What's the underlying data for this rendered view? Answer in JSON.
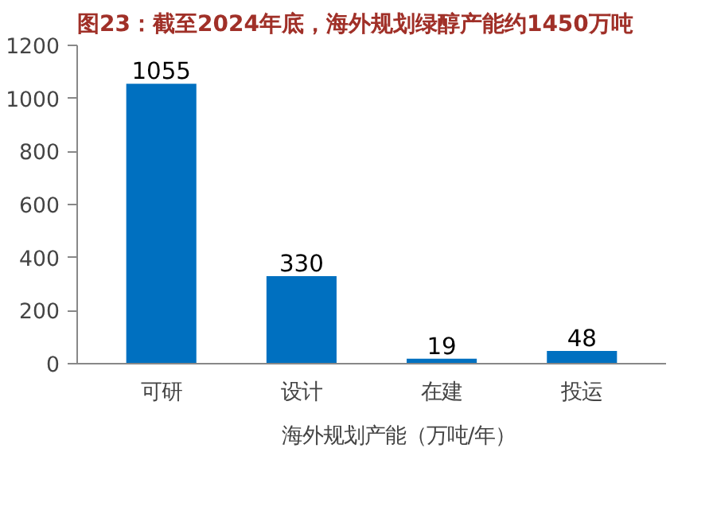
{
  "chart_data": {
    "type": "bar",
    "title": "图23：截至2024年底，海外规划绿醇产能约1450万吨",
    "categories": [
      "可研",
      "设计",
      "在建",
      "投运"
    ],
    "series": [
      {
        "name": "海外规划产能（万吨/年）",
        "color": "#0070c0",
        "values": [
          1055,
          330,
          19,
          48
        ]
      }
    ],
    "ylim": [
      0,
      1200
    ],
    "yticks": [
      0,
      200,
      400,
      600,
      800,
      1000,
      1200
    ],
    "data_labels": true,
    "legend": "bottom",
    "grid": false
  }
}
